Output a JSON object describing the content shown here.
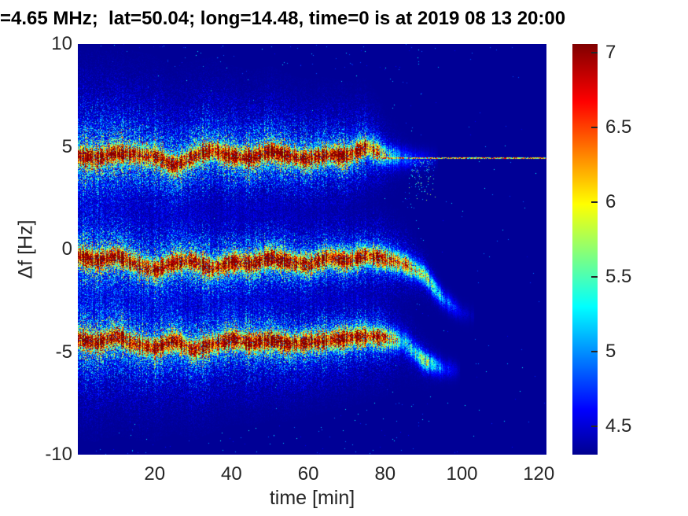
{
  "chart_data": {
    "type": "heatmap",
    "subtype": "doppler-spectrogram",
    "title": "=4.65 MHz;  lat=50.04; long=14.48, time=0 is at 2019 08 13 20:00",
    "xlabel": "time [min]",
    "ylabel": "Δf [Hz]",
    "xlim": [
      0,
      122
    ],
    "ylim": [
      -10,
      10
    ],
    "x_ticks": [
      20,
      40,
      60,
      80,
      100,
      120
    ],
    "y_ticks": [
      10,
      5,
      0,
      -5,
      -10
    ],
    "grid": false,
    "legend": "none",
    "background_value": 4.33,
    "colorbar": {
      "position": "right",
      "min": 4.31,
      "max": 7.06,
      "ticks": [
        7,
        6.5,
        6,
        5.5,
        5,
        4.5
      ],
      "colormap": "jet",
      "stops": [
        {
          "pos": 0.0,
          "color": "#00008F"
        },
        {
          "pos": 0.11,
          "color": "#0000FF"
        },
        {
          "pos": 0.36,
          "color": "#00FFFF"
        },
        {
          "pos": 0.61,
          "color": "#FFFF00"
        },
        {
          "pos": 0.86,
          "color": "#FF0000"
        },
        {
          "pos": 1.0,
          "color": "#800000"
        }
      ]
    },
    "bands": {
      "t_step": 5,
      "t_samples": [
        0,
        5,
        10,
        15,
        20,
        25,
        30,
        35,
        40,
        45,
        50,
        55,
        60,
        65,
        70,
        75,
        80,
        85,
        90,
        95,
        100,
        105,
        110,
        115,
        120
      ],
      "doppler_traces": [
        {
          "name": "upper-trace",
          "centers_hz": [
            4.55,
            4.45,
            4.7,
            4.6,
            4.55,
            4.05,
            4.55,
            4.85,
            4.55,
            4.45,
            4.8,
            4.55,
            4.4,
            4.65,
            4.55,
            5.0,
            4.6,
            4.45,
            4.45,
            4.45,
            4.45,
            4.45,
            4.45,
            4.45,
            4.45
          ],
          "amplitude": [
            1,
            1,
            1,
            1,
            1,
            1,
            1,
            1,
            1,
            1,
            1,
            1,
            1,
            1,
            1,
            1,
            0.5,
            0.2,
            0.08,
            0,
            0,
            0,
            0,
            0,
            0
          ],
          "halfwidth_hz": [
            1.9,
            1.9,
            1.85,
            1.8,
            1.75,
            1.7,
            1.65,
            1.6,
            1.55,
            1.5,
            1.45,
            1.4,
            1.35,
            1.3,
            1.25,
            1.15,
            0.8,
            0.5,
            0.3,
            0.2,
            0.2,
            0.2,
            0.2,
            0.2,
            0.2
          ]
        },
        {
          "name": "middle-trace",
          "centers_hz": [
            -0.3,
            -0.55,
            -0.3,
            -0.7,
            -1.0,
            -0.6,
            -0.55,
            -0.95,
            -0.6,
            -0.7,
            -0.4,
            -0.6,
            -0.75,
            -0.4,
            -0.55,
            -0.3,
            -0.45,
            -0.7,
            -1.2,
            -2.4,
            -3.1,
            -3.3,
            -3.3,
            -3.3,
            -3.3
          ],
          "amplitude": [
            1,
            1,
            1,
            1,
            1,
            1,
            1,
            1,
            1,
            1,
            1,
            1,
            1,
            1,
            1,
            1,
            0.95,
            0.75,
            0.5,
            0.25,
            0.05,
            0,
            0,
            0,
            0
          ],
          "halfwidth_hz": [
            1.7,
            1.7,
            1.65,
            1.6,
            1.6,
            1.55,
            1.5,
            1.45,
            1.4,
            1.35,
            1.3,
            1.25,
            1.2,
            1.15,
            1.1,
            1.05,
            0.95,
            0.8,
            0.55,
            0.35,
            0.25,
            0.2,
            0.2,
            0.2,
            0.2
          ]
        },
        {
          "name": "lower-trace",
          "centers_hz": [
            -4.35,
            -4.55,
            -4.2,
            -4.6,
            -4.8,
            -4.4,
            -4.9,
            -4.6,
            -4.35,
            -4.55,
            -4.4,
            -4.6,
            -4.5,
            -4.4,
            -4.3,
            -4.2,
            -4.3,
            -4.5,
            -5.4,
            -5.8,
            -5.9,
            -5.9,
            -5.9,
            -5.9,
            -5.9
          ],
          "amplitude": [
            1,
            1,
            1,
            1,
            1,
            1,
            1,
            1,
            1,
            1,
            1,
            1,
            1,
            1,
            1,
            1,
            0.85,
            0.3,
            0.5,
            0.15,
            0,
            0,
            0,
            0,
            0
          ],
          "halfwidth_hz": [
            1.75,
            1.7,
            1.7,
            1.65,
            1.6,
            1.6,
            1.55,
            1.5,
            1.45,
            1.4,
            1.35,
            1.3,
            1.25,
            1.2,
            1.15,
            1.1,
            1.0,
            0.8,
            0.5,
            0.35,
            0.3,
            0.3,
            0.3,
            0.3,
            0.3
          ]
        }
      ]
    },
    "flat_line": {
      "f_hz": 4.45,
      "t_start": 79,
      "t_end": 122
    },
    "wisp": {
      "t_start": 86,
      "t_end": 93,
      "f_top": 4.4,
      "f_bottom": 2.4
    },
    "colors": {
      "plot_background": "#00008F",
      "axis_text": "#262626",
      "title_text": "#000000",
      "figure_background": "#FFFFFF"
    }
  }
}
